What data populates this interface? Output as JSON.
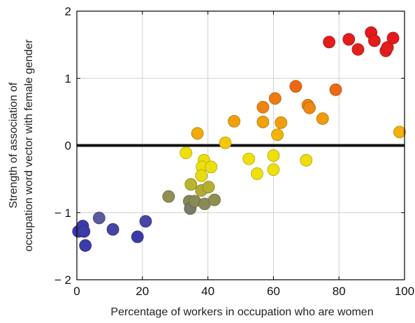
{
  "chart_data": {
    "type": "scatter",
    "title": "",
    "xlabel": "Percentage of workers in occupation who are women",
    "ylabel_lines": [
      "Strength of association of",
      "occupation word vector with female gender"
    ],
    "xlim": [
      0,
      100
    ],
    "ylim": [
      -2,
      2
    ],
    "xticks": [
      0,
      20,
      40,
      60,
      80,
      100
    ],
    "yticks": [
      -2,
      -1,
      0,
      1,
      2
    ],
    "xtick_labels": [
      "0",
      "20",
      "40",
      "60",
      "80",
      "100"
    ],
    "ytick_labels": [
      "− 2",
      "− 1",
      "0",
      "1",
      "2"
    ],
    "grid": true,
    "reference_line": {
      "y": 0,
      "color": "#111111"
    },
    "color_scale": {
      "low": "#3a3aa8",
      "mid": "#f2e300",
      "high": "#e8141c"
    },
    "points": [
      {
        "x": 0.5,
        "y": -1.28,
        "color": "#3c3ca8"
      },
      {
        "x": 1.8,
        "y": -1.2,
        "color": "#3c3ca8"
      },
      {
        "x": 2.2,
        "y": -1.28,
        "color": "#3c3ca8"
      },
      {
        "x": 2.6,
        "y": -1.49,
        "color": "#3c3ca8"
      },
      {
        "x": 6.8,
        "y": -1.08,
        "color": "#5a5a9e"
      },
      {
        "x": 11.0,
        "y": -1.25,
        "color": "#4545a5"
      },
      {
        "x": 18.5,
        "y": -1.36,
        "color": "#3c3ca8"
      },
      {
        "x": 21.0,
        "y": -1.13,
        "color": "#4646a4"
      },
      {
        "x": 28.0,
        "y": -0.76,
        "color": "#8f8f52"
      },
      {
        "x": 34.3,
        "y": -0.83,
        "color": "#87875a"
      },
      {
        "x": 34.6,
        "y": -0.94,
        "color": "#7a7a66"
      },
      {
        "x": 36.0,
        "y": -0.83,
        "color": "#8a8a56"
      },
      {
        "x": 39.0,
        "y": -0.87,
        "color": "#8a8a56"
      },
      {
        "x": 42.0,
        "y": -0.81,
        "color": "#8f8f52"
      },
      {
        "x": 34.8,
        "y": -0.58,
        "color": "#b9b32e"
      },
      {
        "x": 38.0,
        "y": -0.67,
        "color": "#b0ab36"
      },
      {
        "x": 40.2,
        "y": -0.62,
        "color": "#b5b032"
      },
      {
        "x": 33.3,
        "y": -0.11,
        "color": "#f0df0a"
      },
      {
        "x": 38.8,
        "y": -0.22,
        "color": "#ece00c"
      },
      {
        "x": 38.2,
        "y": -0.32,
        "color": "#ece00c"
      },
      {
        "x": 38.0,
        "y": -0.45,
        "color": "#e8dc10"
      },
      {
        "x": 41.0,
        "y": -0.32,
        "color": "#ece00c"
      },
      {
        "x": 36.8,
        "y": 0.18,
        "color": "#f2aa0a"
      },
      {
        "x": 45.3,
        "y": 0.04,
        "color": "#f2c808"
      },
      {
        "x": 48.0,
        "y": 0.36,
        "color": "#f0a00a"
      },
      {
        "x": 52.5,
        "y": -0.2,
        "color": "#f0e00a"
      },
      {
        "x": 55.0,
        "y": -0.42,
        "color": "#f0e00a"
      },
      {
        "x": 60.0,
        "y": -0.15,
        "color": "#f0e00a"
      },
      {
        "x": 60.0,
        "y": -0.36,
        "color": "#f0e00a"
      },
      {
        "x": 70.0,
        "y": -0.22,
        "color": "#f0dc0a"
      },
      {
        "x": 56.8,
        "y": 0.57,
        "color": "#ee8410"
      },
      {
        "x": 56.8,
        "y": 0.35,
        "color": "#f0a00a"
      },
      {
        "x": 60.5,
        "y": 0.7,
        "color": "#ee7a10"
      },
      {
        "x": 61.2,
        "y": 0.16,
        "color": "#f2b408"
      },
      {
        "x": 62.3,
        "y": 0.34,
        "color": "#f0a00a"
      },
      {
        "x": 66.8,
        "y": 0.88,
        "color": "#ec6812"
      },
      {
        "x": 70.5,
        "y": 0.6,
        "color": "#ee8410"
      },
      {
        "x": 71.0,
        "y": 0.56,
        "color": "#ee8810"
      },
      {
        "x": 75.0,
        "y": 0.4,
        "color": "#f09a0a"
      },
      {
        "x": 79.0,
        "y": 0.83,
        "color": "#ec6a12"
      },
      {
        "x": 98.5,
        "y": 0.2,
        "color": "#f2b008"
      },
      {
        "x": 77.0,
        "y": 1.54,
        "color": "#e41c1c"
      },
      {
        "x": 83.0,
        "y": 1.58,
        "color": "#e41c1c"
      },
      {
        "x": 85.8,
        "y": 1.43,
        "color": "#e4201c"
      },
      {
        "x": 89.8,
        "y": 1.68,
        "color": "#e4181c"
      },
      {
        "x": 90.8,
        "y": 1.56,
        "color": "#e41c1c"
      },
      {
        "x": 94.3,
        "y": 1.41,
        "color": "#e4201c"
      },
      {
        "x": 94.8,
        "y": 1.46,
        "color": "#e41e1c"
      },
      {
        "x": 96.5,
        "y": 1.6,
        "color": "#e41a1c"
      }
    ]
  }
}
